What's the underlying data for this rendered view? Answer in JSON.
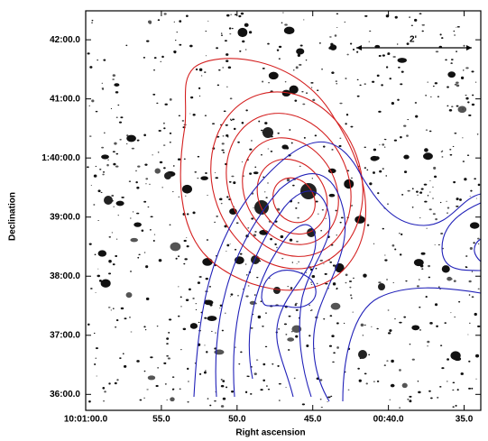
{
  "chart_data": {
    "type": "image-contour",
    "xlabel": "Right ascension",
    "ylabel": "Declination",
    "scale_label": "2'",
    "xlim": [
      60,
      33.9
    ],
    "ylim": [
      35.73,
      42.49
    ],
    "xticks": [
      {
        "value": 60,
        "label": "10:01:00.0"
      },
      {
        "value": 55,
        "label": "55.0"
      },
      {
        "value": 50,
        "label": "50.0"
      },
      {
        "value": 45,
        "label": "45.0"
      },
      {
        "value": 40,
        "label": "00:40.0"
      },
      {
        "value": 35,
        "label": "35.0"
      }
    ],
    "yticks": [
      {
        "value": 42,
        "label": "42:00.0"
      },
      {
        "value": 41,
        "label": "41:00.0"
      },
      {
        "value": 40,
        "label": "1:40:00.0"
      },
      {
        "value": 39,
        "label": "39:00.0"
      },
      {
        "value": 38,
        "label": "38:00.0"
      },
      {
        "value": 37,
        "label": "37:00.0"
      },
      {
        "value": 36,
        "label": "36:00.0"
      }
    ]
  }
}
